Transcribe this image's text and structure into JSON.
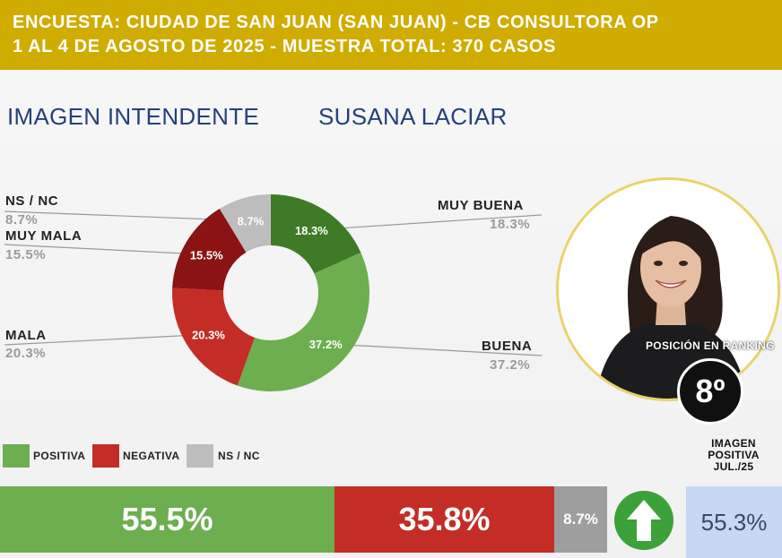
{
  "header": {
    "line1": "ENCUESTA: CIUDAD DE SAN JUAN (SAN JUAN) - CB CONSULTORA OP",
    "line2": "1 AL 4 DE AGOSTO DE 2025 - MUESTRA TOTAL: 370 CASOS"
  },
  "section": {
    "title": "IMAGEN INTENDENTE",
    "person": "SUSANA LACIAR"
  },
  "chart_data": {
    "type": "pie",
    "donut": true,
    "slices": [
      {
        "label": "MUY BUENA",
        "value": 18.3,
        "display": "18.3%",
        "color": "#3f7a26"
      },
      {
        "label": "BUENA",
        "value": 37.2,
        "display": "37.2%",
        "color": "#6dae4f"
      },
      {
        "label": "MALA",
        "value": 20.3,
        "display": "20.3%",
        "color": "#c32d26"
      },
      {
        "label": "MUY MALA",
        "value": 15.5,
        "display": "15.5%",
        "color": "#8b1313"
      },
      {
        "label": "NS / NC",
        "value": 8.7,
        "display": "8.7%",
        "color": "#bdbdbd"
      }
    ]
  },
  "labels": {
    "nsnc": {
      "name": "NS / NC",
      "value": "8.7%"
    },
    "muy_mala": {
      "name": "MUY MALA",
      "value": "15.5%"
    },
    "mala": {
      "name": "MALA",
      "value": "20.3%"
    },
    "muy_buena": {
      "name": "MUY BUENA",
      "value": "18.3%"
    },
    "buena": {
      "name": "BUENA",
      "value": "37.2%"
    }
  },
  "legend": [
    {
      "label": "POSITIVA",
      "color": "#6dae4f"
    },
    {
      "label": "NEGATIVA",
      "color": "#c32d26"
    },
    {
      "label": "NS / NC",
      "color": "#bdbdbd"
    }
  ],
  "summary": {
    "positiva": {
      "value": 55.5,
      "display": "55.5%",
      "color": "#6dae4f"
    },
    "negativa": {
      "value": 35.8,
      "display": "35.8%",
      "color": "#c32d26"
    },
    "nsnc": {
      "value": 8.7,
      "display": "8.7%",
      "color": "#9e9e9e"
    }
  },
  "trend_icon": "arrow-up-icon",
  "ranking": {
    "label": "POSICIÓN EN RANKING",
    "value": "8º"
  },
  "previous": {
    "label_line1": "IMAGEN",
    "label_line2": "POSITIVA",
    "label_line3": "JUL./25",
    "value": "55.3%"
  },
  "colors": {
    "header_bg": "#d1ac00",
    "title_blue": "#26407a",
    "prev_bg": "#c6d9f3"
  }
}
